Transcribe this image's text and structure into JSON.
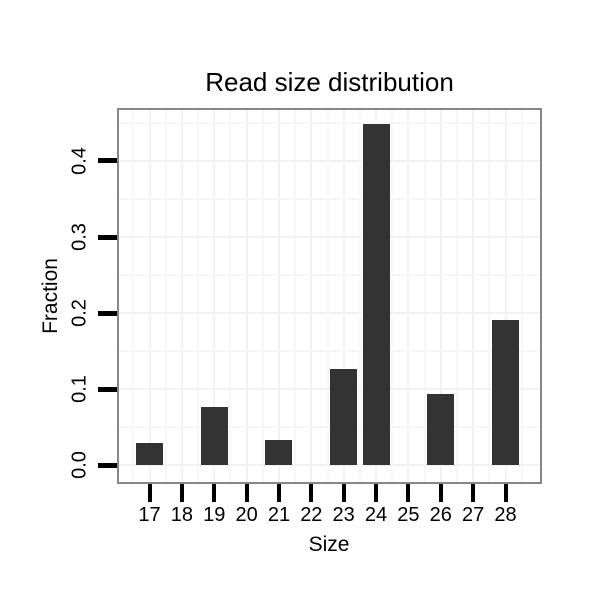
{
  "chart_data": {
    "type": "bar",
    "title": "Read size distribution",
    "xlabel": "Size",
    "ylabel": "Fraction",
    "categories": [
      "17",
      "18",
      "19",
      "20",
      "21",
      "22",
      "23",
      "24",
      "25",
      "26",
      "27",
      "28"
    ],
    "values": [
      0.029,
      0,
      0.076,
      0,
      0.033,
      0,
      0.126,
      0.448,
      0,
      0.094,
      0,
      0.191
    ],
    "ylim": [
      -0.022,
      0.467
    ],
    "yticks": [
      0,
      0.1,
      0.2,
      0.3,
      0.4
    ],
    "ytick_labels": [
      "0.0",
      "0.1",
      "0.2",
      "0.3",
      "0.4"
    ],
    "yticks_minor": [
      0.05,
      0.15,
      0.25,
      0.35,
      0.45
    ],
    "grid": "major and minor gridlines, very faint, on white panel",
    "legend": "none",
    "bar_color": "#333333",
    "panel_border_color": "#878787",
    "grid_major_color": "#f2f2f2",
    "grid_minor_color": "#f7f7f7",
    "tick_color": "#000000",
    "text_color": "#000000",
    "background_color": "#ffffff"
  }
}
